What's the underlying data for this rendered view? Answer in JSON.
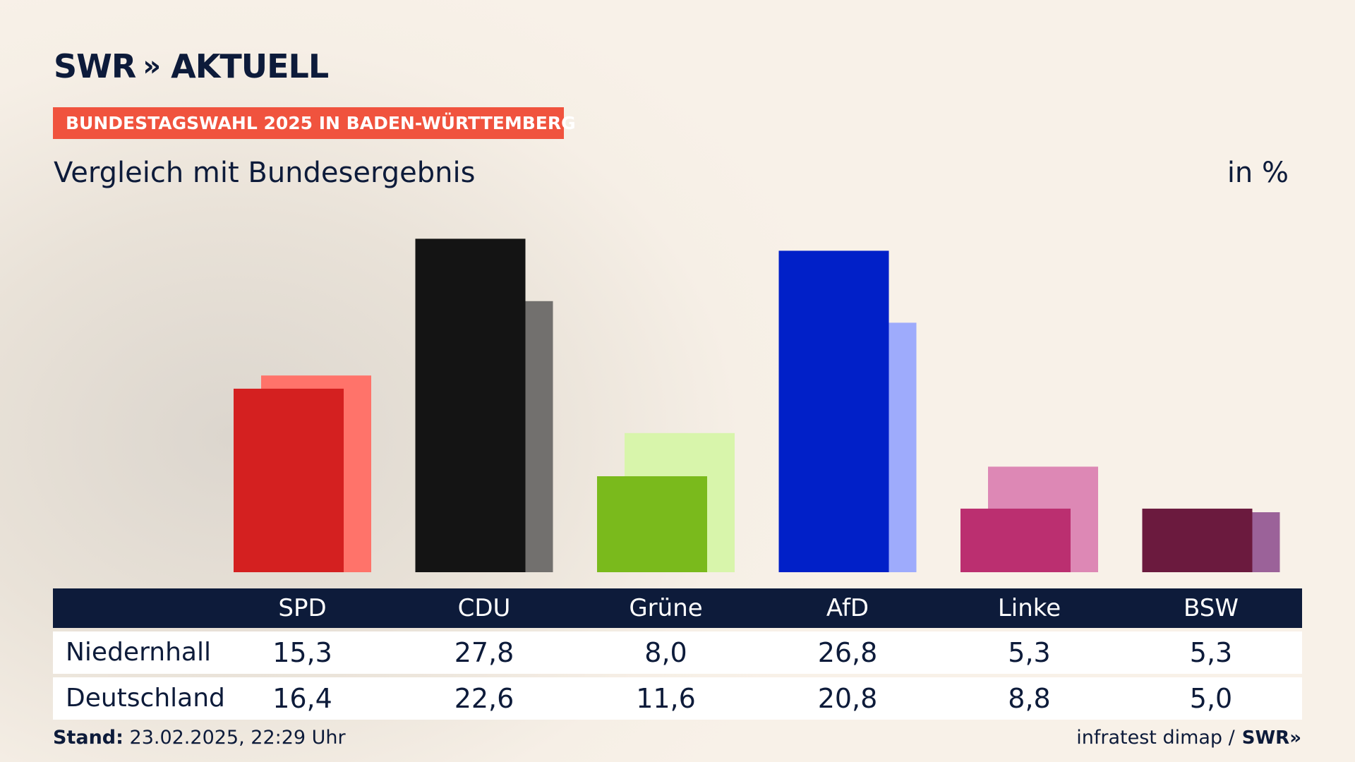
{
  "header": {
    "logo_text": "SWR",
    "logo_chevrons": "»",
    "logo_suffix": "AKTUELL",
    "badge": "BUNDESTAGSWAHL 2025 IN BADEN-WÜRTTEMBERG",
    "subtitle": "Vergleich mit Bundesergebnis",
    "unit": "in %"
  },
  "chart_data": {
    "type": "bar",
    "title": "Vergleich mit Bundesergebnis",
    "unit": "in %",
    "categories": [
      "SPD",
      "CDU",
      "Grüne",
      "AfD",
      "Linke",
      "BSW"
    ],
    "series": [
      {
        "name": "Niedernhall",
        "values": [
          15.3,
          27.8,
          8.0,
          26.8,
          5.3,
          5.3
        ],
        "labels": [
          "15,3",
          "27,8",
          "8,0",
          "26,8",
          "5,3",
          "5,3"
        ],
        "colors": [
          "#d42020",
          "#141414",
          "#7aba1c",
          "#0120c8",
          "#bb2f70",
          "#6b1a3e"
        ]
      },
      {
        "name": "Deutschland",
        "values": [
          16.4,
          22.6,
          11.6,
          20.8,
          8.8,
          5.0
        ],
        "labels": [
          "16,4",
          "22,6",
          "11,6",
          "20,8",
          "8,8",
          "5,0"
        ],
        "colors": [
          "#ff736a",
          "#72706e",
          "#d8f5ab",
          "#9eabfc",
          "#dd88b5",
          "#9b6299"
        ]
      }
    ],
    "ylim": [
      0,
      28
    ],
    "grid": false,
    "legend": "none"
  },
  "footer": {
    "stand_label": "Stand:",
    "stand_value": "23.02.2025, 22:29 Uhr",
    "source": "infratest dimap /",
    "source_logo": "SWR»"
  }
}
